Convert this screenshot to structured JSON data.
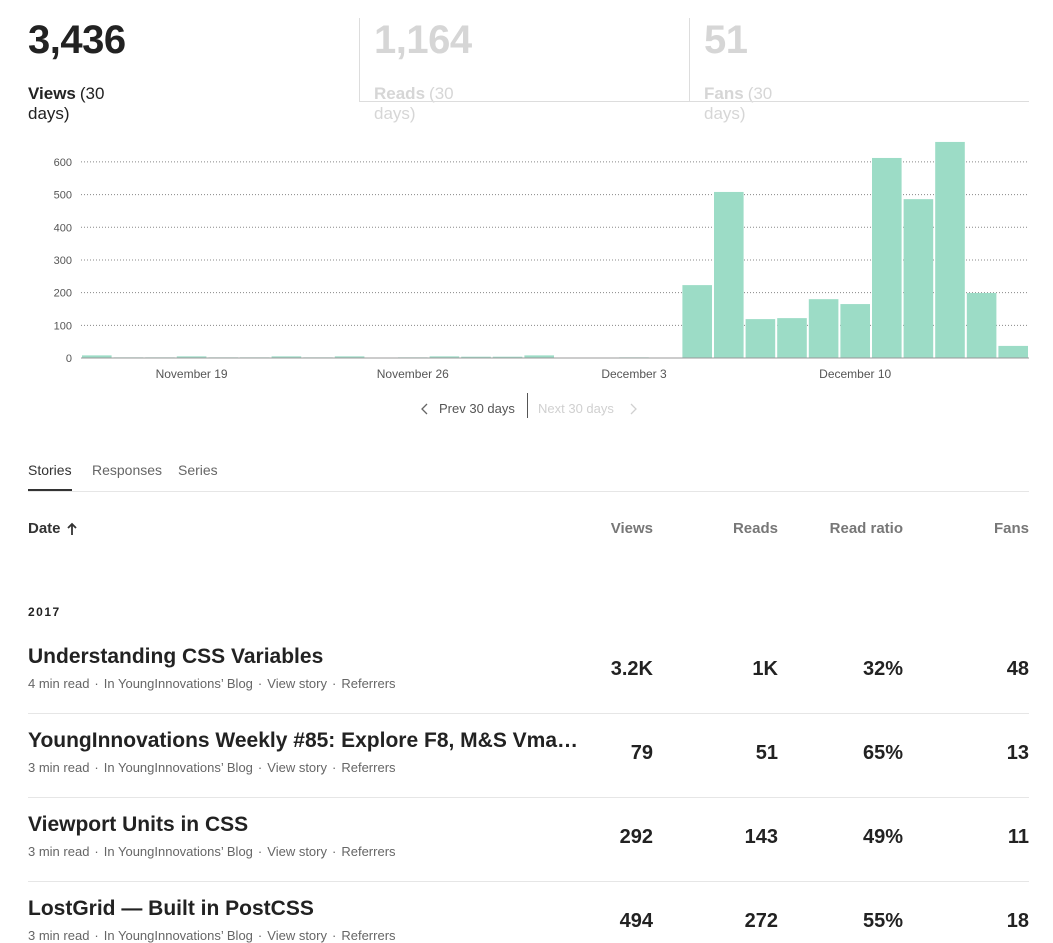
{
  "stats": [
    {
      "value": "3,436",
      "label": "Views",
      "period": "(30 days)"
    },
    {
      "value": "1,164",
      "label": "Reads",
      "period": "(30 days)"
    },
    {
      "value": "51",
      "label": "Fans",
      "period": "(30 days)"
    }
  ],
  "chart_data": {
    "type": "bar",
    "categories": [
      null,
      null,
      null,
      "November 19",
      null,
      null,
      null,
      null,
      null,
      null,
      "November 26",
      null,
      null,
      null,
      null,
      null,
      null,
      "December 3",
      null,
      null,
      null,
      null,
      null,
      null,
      "December 10",
      null,
      null,
      null,
      null,
      null
    ],
    "values": [
      8,
      2,
      2,
      5,
      2,
      2,
      5,
      2,
      5,
      1,
      2,
      5,
      4,
      4,
      8,
      1,
      1,
      2,
      1,
      223,
      508,
      119,
      122,
      180,
      165,
      612,
      486,
      661,
      199,
      37
    ],
    "color": "#9cdcc6",
    "ylim": [
      0,
      670
    ],
    "yticks": [
      0,
      100,
      200,
      300,
      400,
      500,
      600
    ],
    "grid": true
  },
  "nav": {
    "prev": "Prev 30 days",
    "next": "Next 30 days"
  },
  "tabs": [
    "Stories",
    "Responses",
    "Series"
  ],
  "table": {
    "columns": [
      "Date",
      "Views",
      "Reads",
      "Read ratio",
      "Fans"
    ],
    "year": "2017",
    "rows": [
      {
        "title": "Understanding CSS Variables",
        "meta": [
          "4 min read",
          "In YoungInnovations’ Blog",
          "View story",
          "Referrers"
        ],
        "views": "3.2K",
        "reads": "1K",
        "ratio": "32%",
        "fans": "48"
      },
      {
        "title": "YoungInnovations Weekly #85: Explore F8, M&S Vma…",
        "meta": [
          "3 min read",
          "In YoungInnovations’ Blog",
          "View story",
          "Referrers"
        ],
        "views": "79",
        "reads": "51",
        "ratio": "65%",
        "fans": "13"
      },
      {
        "title": "Viewport Units in CSS",
        "meta": [
          "3 min read",
          "In YoungInnovations’ Blog",
          "View story",
          "Referrers"
        ],
        "views": "292",
        "reads": "143",
        "ratio": "49%",
        "fans": "11"
      },
      {
        "title": "LostGrid — Built in PostCSS",
        "meta": [
          "3 min read",
          "In YoungInnovations’ Blog",
          "View story",
          "Referrers"
        ],
        "views": "494",
        "reads": "272",
        "ratio": "55%",
        "fans": "18"
      }
    ]
  }
}
